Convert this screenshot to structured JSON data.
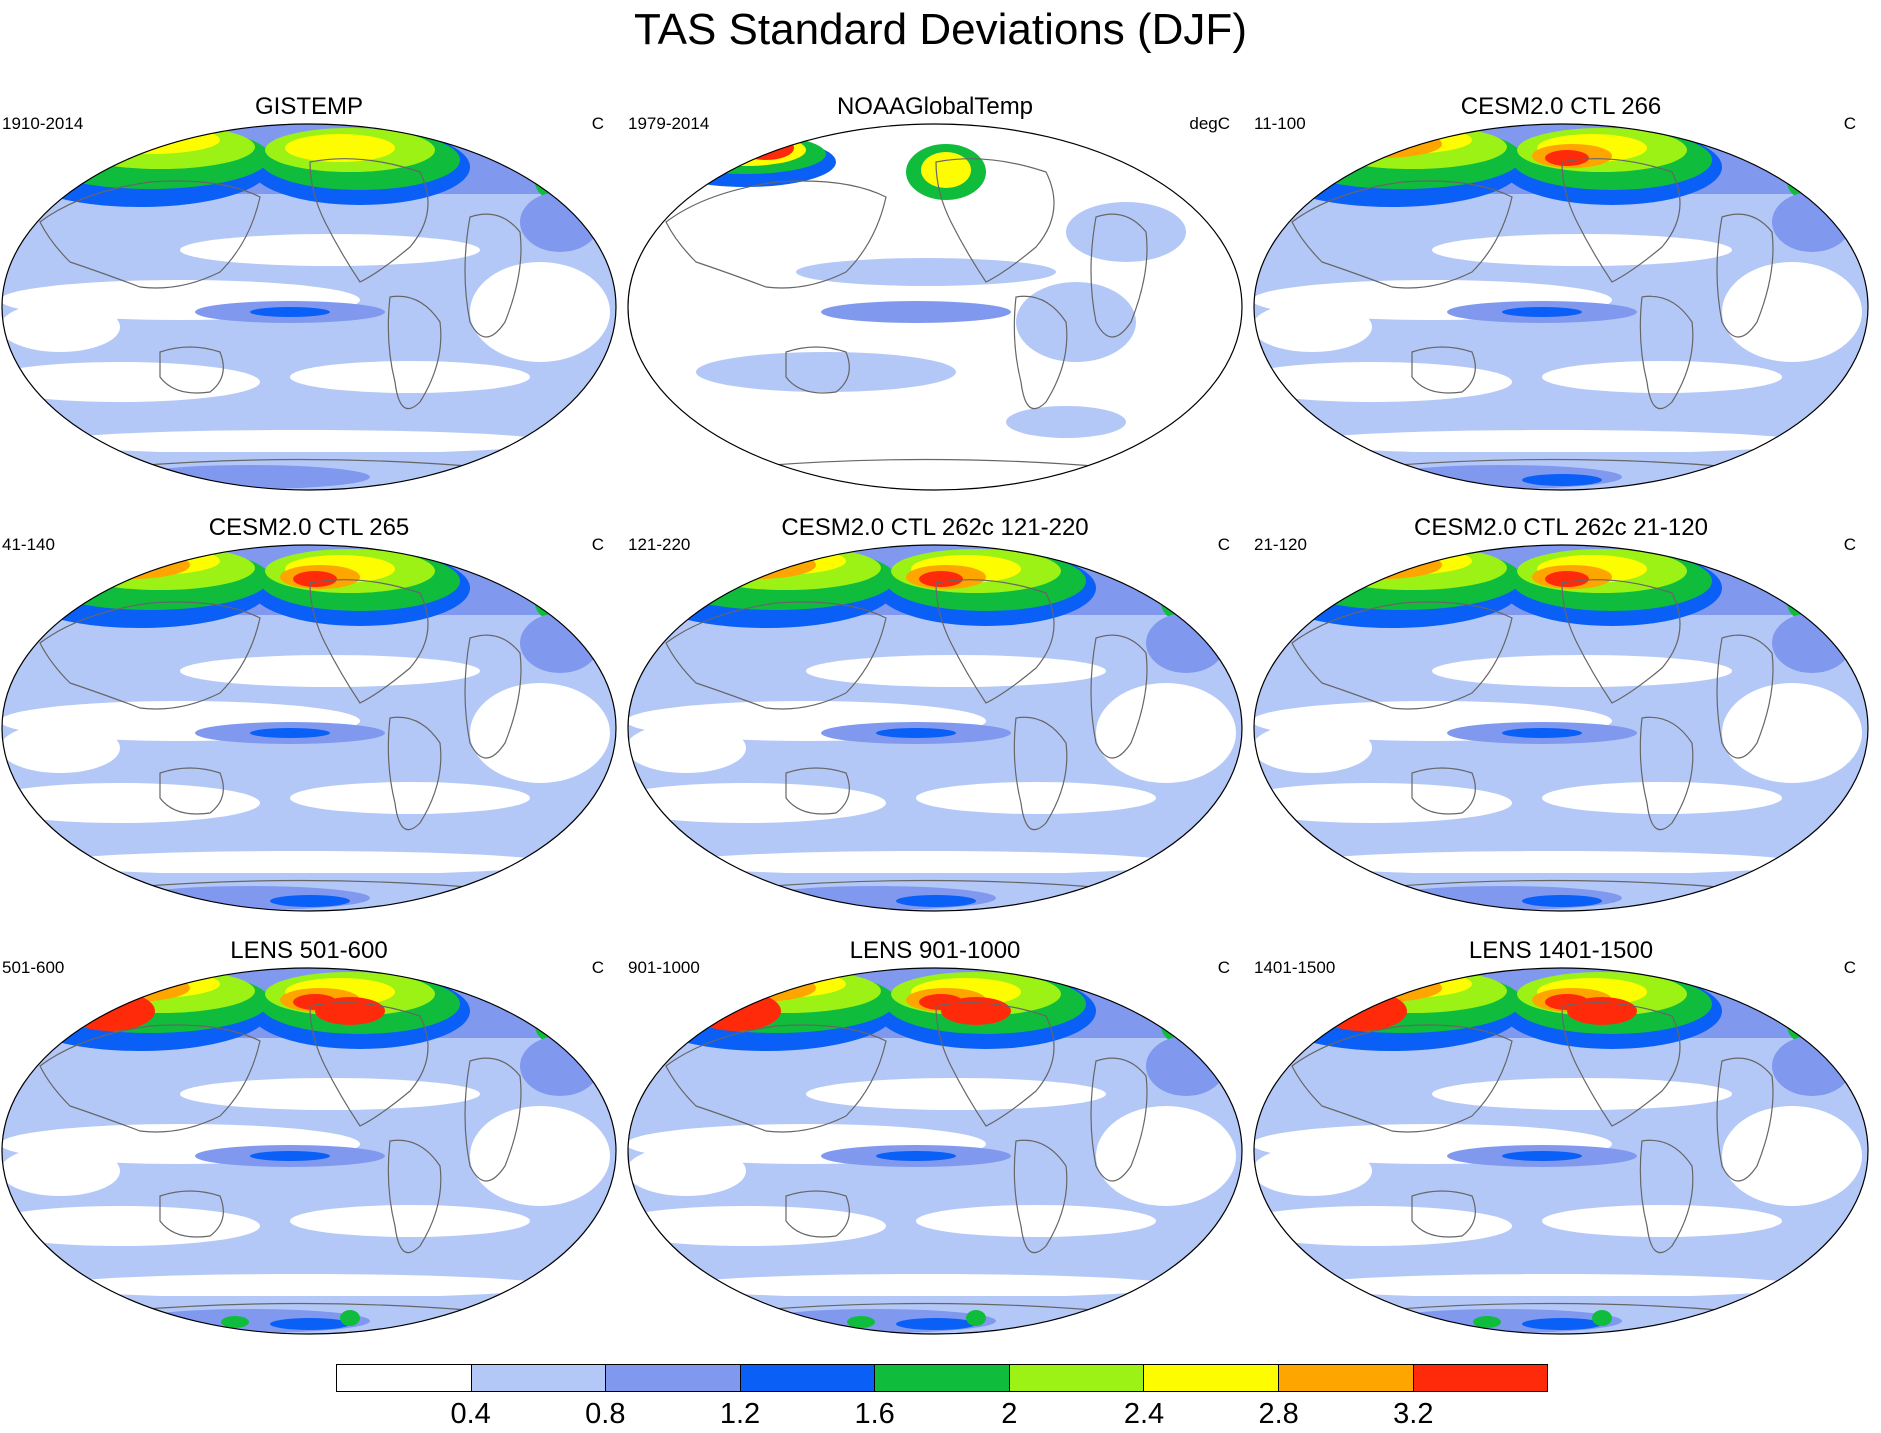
{
  "title": "TAS Standard Deviations (DJF)",
  "panels": [
    {
      "title": "GISTEMP",
      "period": "1910-2014",
      "units": "C",
      "variant": "obs-gis"
    },
    {
      "title": "NOAAGlobalTemp",
      "period": "1979-2014",
      "units": "degC",
      "variant": "obs-noaa"
    },
    {
      "title": "CESM2.0 CTL 266",
      "period": "11-100",
      "units": "C",
      "variant": "cesm"
    },
    {
      "title": "CESM2.0 CTL 265",
      "period": "41-140",
      "units": "C",
      "variant": "cesm"
    },
    {
      "title": "CESM2.0 CTL 262c 121-220",
      "period": "121-220",
      "units": "C",
      "variant": "cesm"
    },
    {
      "title": "CESM2.0 CTL 262c 21-120",
      "period": "21-120",
      "units": "C",
      "variant": "cesm"
    },
    {
      "title": "LENS 501-600",
      "period": "501-600",
      "units": "C",
      "variant": "lens"
    },
    {
      "title": "LENS 901-1000",
      "period": "901-1000",
      "units": "C",
      "variant": "lens"
    },
    {
      "title": "LENS 1401-1500",
      "period": "1401-1500",
      "units": "C",
      "variant": "lens"
    }
  ],
  "colorbar": {
    "levels": [
      "0.4",
      "0.8",
      "1.2",
      "1.6",
      "2",
      "2.4",
      "2.8",
      "3.2"
    ],
    "colors": [
      "#ffffff",
      "#b4c8f8",
      "#8098ee",
      "#0a5ff6",
      "#10bc3c",
      "#9cf214",
      "#fefc00",
      "#ffa500",
      "#ff2a0a"
    ]
  },
  "coast_color": "#666666"
}
